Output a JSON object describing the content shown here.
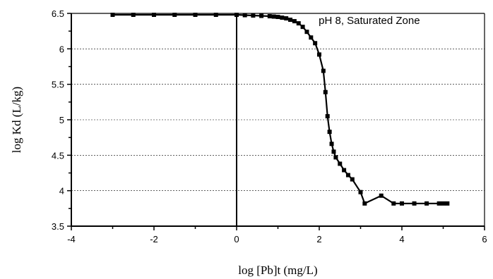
{
  "chart_data": {
    "type": "line",
    "title": "",
    "xlabel": "log [Pb]t (mg/L)",
    "ylabel": "log Kd (L/kg)",
    "xlim": [
      -4,
      6
    ],
    "ylim": [
      3.5,
      6.5
    ],
    "x_ticks": [
      "-4",
      "-2",
      "0",
      "2",
      "4",
      "6"
    ],
    "y_ticks": [
      "3.5",
      "4",
      "4.5",
      "5",
      "5.5",
      "6",
      "6.5"
    ],
    "grid": "horizontal dashed",
    "annotation": "pH 8, Saturated Zone",
    "series": [
      {
        "marker": "square",
        "color": "#000000",
        "points": [
          [
            -3.0,
            6.48
          ],
          [
            -2.5,
            6.48
          ],
          [
            -2.0,
            6.48
          ],
          [
            -1.5,
            6.48
          ],
          [
            -1.0,
            6.48
          ],
          [
            -0.5,
            6.48
          ],
          [
            0.0,
            6.48
          ],
          [
            0.2,
            6.475
          ],
          [
            0.4,
            6.47
          ],
          [
            0.6,
            6.465
          ],
          [
            0.8,
            6.46
          ],
          [
            0.9,
            6.455
          ],
          [
            1.0,
            6.45
          ],
          [
            1.1,
            6.44
          ],
          [
            1.2,
            6.43
          ],
          [
            1.3,
            6.41
          ],
          [
            1.4,
            6.39
          ],
          [
            1.5,
            6.36
          ],
          [
            1.6,
            6.31
          ],
          [
            1.7,
            6.24
          ],
          [
            1.8,
            6.16
          ],
          [
            1.9,
            6.08
          ],
          [
            2.0,
            5.92
          ],
          [
            2.1,
            5.69
          ],
          [
            2.15,
            5.39
          ],
          [
            2.2,
            5.05
          ],
          [
            2.25,
            4.83
          ],
          [
            2.3,
            4.66
          ],
          [
            2.35,
            4.55
          ],
          [
            2.4,
            4.47
          ],
          [
            2.5,
            4.38
          ],
          [
            2.6,
            4.29
          ],
          [
            2.7,
            4.22
          ],
          [
            2.8,
            4.16
          ],
          [
            3.0,
            3.98
          ],
          [
            3.1,
            3.82
          ],
          [
            3.5,
            3.93
          ],
          [
            3.8,
            3.82
          ],
          [
            4.0,
            3.82
          ],
          [
            4.3,
            3.82
          ],
          [
            4.6,
            3.82
          ],
          [
            4.9,
            3.82
          ],
          [
            5.0,
            3.82
          ],
          [
            5.1,
            3.82
          ]
        ]
      }
    ],
    "vertical_line_x": 0
  }
}
